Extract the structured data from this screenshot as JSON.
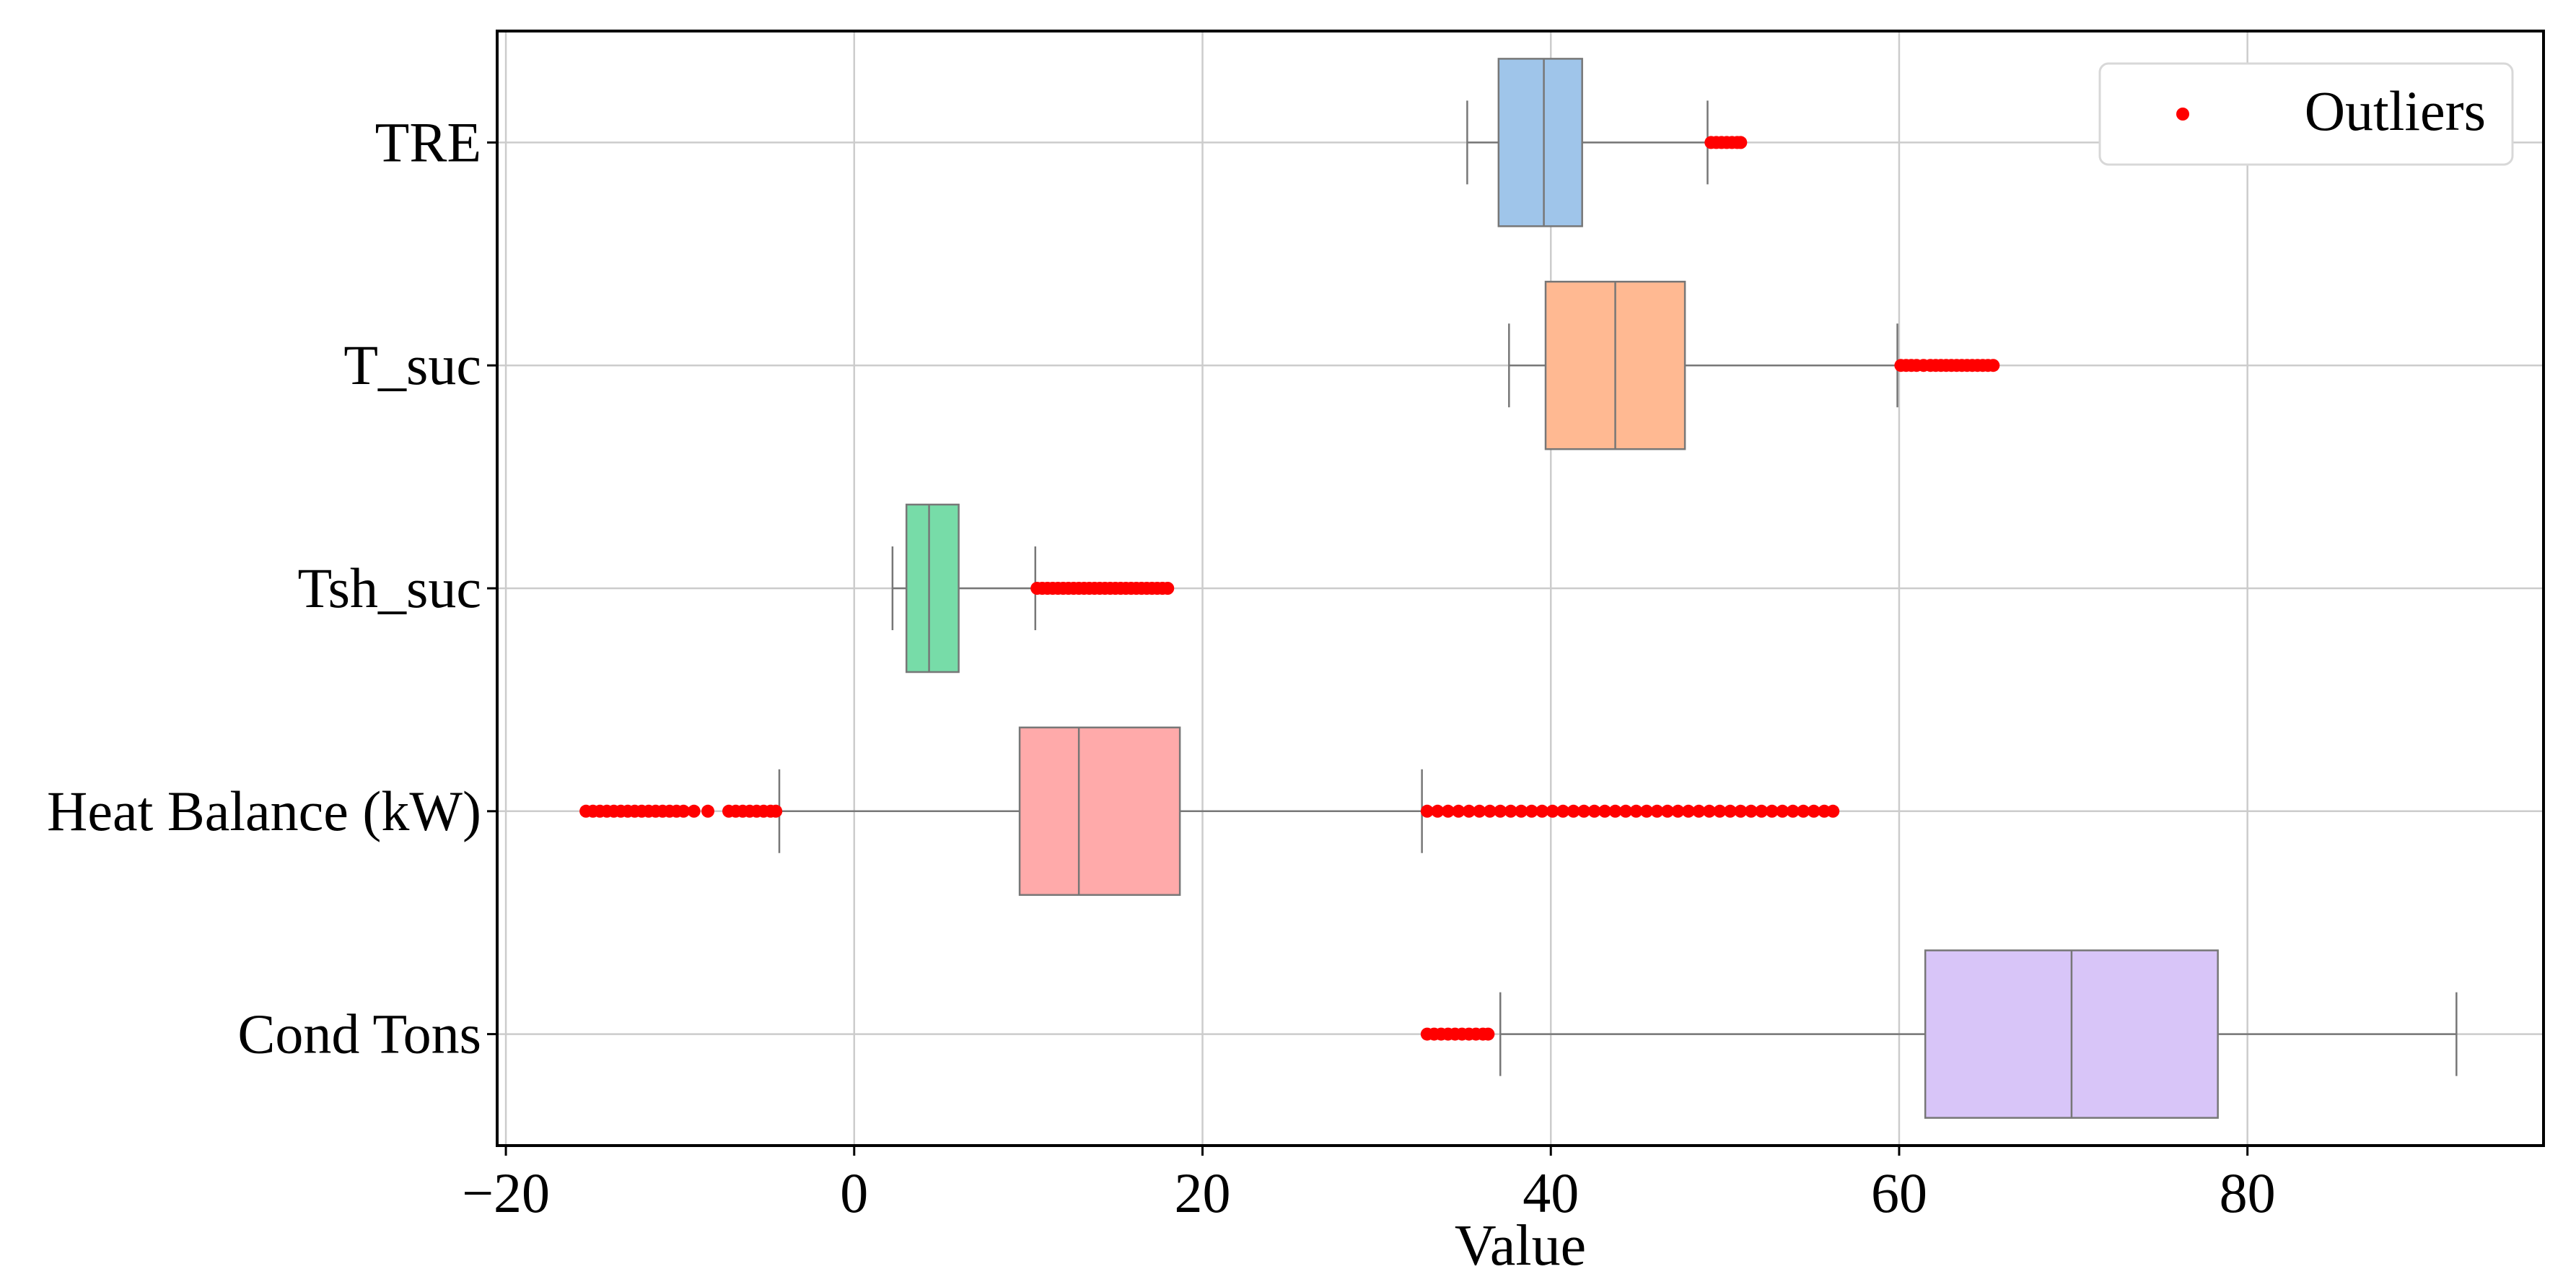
{
  "chart_data": {
    "type": "boxplot",
    "orientation": "horizontal",
    "title": "",
    "xlabel": "Value",
    "ylabel": "",
    "xlim": [
      -20.5,
      97
    ],
    "x_ticks": [
      -20,
      0,
      20,
      40,
      60,
      80
    ],
    "x_tick_labels": [
      "−20",
      "0",
      "20",
      "40",
      "60",
      "80"
    ],
    "grid": true,
    "legend": {
      "position": "top-right",
      "entries": [
        {
          "label": "Outliers",
          "color": "#ff0000",
          "marker": "dot"
        }
      ]
    },
    "outlier_color": "#ff0000",
    "series": [
      {
        "name": "TRE",
        "color": "#9fc5ea",
        "whisker_low": 35.2,
        "q1": 37.0,
        "median": 39.6,
        "q3": 41.8,
        "whisker_high": 49.0,
        "outliers": [
          49.2,
          49.5,
          49.8,
          50.1,
          50.4,
          50.7,
          50.9
        ]
      },
      {
        "name": "T_suc",
        "color": "#ffb992",
        "whisker_low": 37.6,
        "q1": 39.7,
        "median": 43.7,
        "q3": 47.7,
        "whisker_high": 59.9,
        "outliers": [
          60.1,
          60.4,
          60.7,
          61.0,
          61.4,
          61.8,
          62.1,
          62.4,
          62.7,
          63.0,
          63.3,
          63.6,
          63.9,
          64.2,
          64.5,
          64.8,
          65.1,
          65.4
        ]
      },
      {
        "name": "Tsh_suc",
        "color": "#77dca8",
        "whisker_low": 2.2,
        "q1": 3.0,
        "median": 4.3,
        "q3": 6.0,
        "whisker_high": 10.4,
        "outliers": [
          10.5,
          10.8,
          11.1,
          11.4,
          11.7,
          12.0,
          12.3,
          12.6,
          12.9,
          13.2,
          13.5,
          13.8,
          14.1,
          14.4,
          14.7,
          15.0,
          15.3,
          15.6,
          15.9,
          16.2,
          16.5,
          16.8,
          17.1,
          17.4,
          17.7,
          18.0
        ]
      },
      {
        "name": "Heat Balance (kW)",
        "color": "#ffaaaa",
        "whisker_low": -4.3,
        "q1": 9.5,
        "median": 12.9,
        "q3": 18.7,
        "whisker_high": 32.6,
        "outliers": [
          -15.4,
          -15.0,
          -14.6,
          -14.2,
          -13.8,
          -13.4,
          -13.0,
          -12.6,
          -12.2,
          -11.8,
          -11.4,
          -11.0,
          -10.6,
          -10.2,
          -9.8,
          -9.2,
          -8.4,
          -7.2,
          -6.8,
          -6.4,
          -6.0,
          -5.6,
          -5.2,
          -4.8,
          -4.5,
          32.9,
          33.5,
          34.1,
          34.7,
          35.3,
          35.9,
          36.5,
          37.1,
          37.7,
          38.3,
          38.9,
          39.5,
          40.1,
          40.7,
          41.3,
          41.9,
          42.5,
          43.1,
          43.7,
          44.3,
          44.9,
          45.5,
          46.1,
          46.7,
          47.3,
          47.9,
          48.5,
          49.1,
          49.7,
          50.3,
          50.9,
          51.5,
          52.1,
          52.7,
          53.3,
          53.9,
          54.5,
          55.1,
          55.7,
          56.2
        ]
      },
      {
        "name": "Cond Tons",
        "color": "#d8c5f8",
        "whisker_low": 37.1,
        "q1": 61.5,
        "median": 69.9,
        "q3": 78.3,
        "whisker_high": 92.0,
        "outliers": [
          32.9,
          33.3,
          33.7,
          34.1,
          34.5,
          34.9,
          35.3,
          35.7,
          36.1,
          36.4
        ]
      }
    ]
  }
}
